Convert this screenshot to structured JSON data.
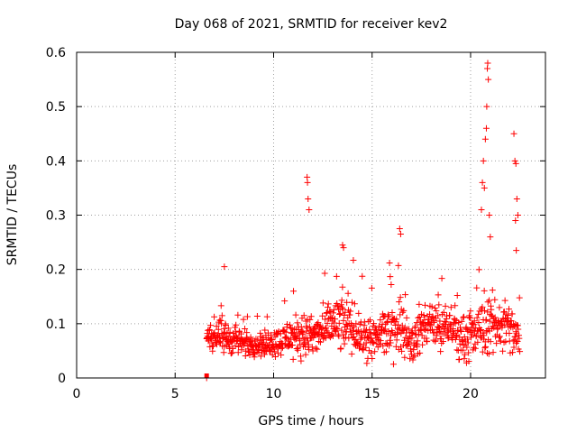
{
  "chart_data": {
    "type": "scatter",
    "title": "Day 068 of 2021, SRMTID for receiver kev2",
    "xlabel": "GPS time / hours",
    "ylabel": "SRMTID / TECUs",
    "xlim": [
      0,
      23.8
    ],
    "ylim": [
      0,
      0.6
    ],
    "x_ticks": [
      0,
      5,
      10,
      15,
      20
    ],
    "x_tick_labels": [
      "0",
      "5",
      "10",
      "15",
      "20"
    ],
    "y_ticks": [
      0,
      0.1,
      0.2,
      0.3,
      0.4,
      0.5,
      0.6
    ],
    "y_tick_labels": [
      "0",
      "0.1",
      "0.2",
      "0.3",
      "0.4",
      "0.5",
      "0.6"
    ],
    "grid": true,
    "marker": "+",
    "series": [
      {
        "name": "SRMTID",
        "color": "#ff0000",
        "outliers": {
          "x": [
            6.6,
            7.5,
            11.7,
            11.72,
            11.75,
            11.8,
            13.5,
            13.55,
            16.4,
            16.45,
            20.55,
            20.6,
            20.65,
            20.7,
            20.75,
            20.8,
            20.82,
            20.85,
            20.87,
            20.9,
            20.95,
            21.0,
            22.2,
            22.25,
            22.3,
            22.35,
            22.4,
            22.28,
            22.32
          ],
          "y": [
            0.0,
            0.205,
            0.37,
            0.36,
            0.33,
            0.31,
            0.245,
            0.24,
            0.275,
            0.265,
            0.31,
            0.36,
            0.4,
            0.35,
            0.44,
            0.46,
            0.5,
            0.57,
            0.58,
            0.55,
            0.3,
            0.26,
            0.45,
            0.4,
            0.395,
            0.33,
            0.3,
            0.29,
            0.235
          ]
        },
        "envelope": {
          "x": [
            6.6,
            7.0,
            7.5,
            8.0,
            8.5,
            9.0,
            9.5,
            10.0,
            10.5,
            11.0,
            11.5,
            12.0,
            12.5,
            13.0,
            13.5,
            14.0,
            14.5,
            15.0,
            15.5,
            16.0,
            16.5,
            17.0,
            17.5,
            18.0,
            18.5,
            19.0,
            19.5,
            20.0,
            20.5,
            21.0,
            21.5,
            22.0,
            22.5
          ],
          "median": [
            0.08,
            0.075,
            0.075,
            0.07,
            0.065,
            0.065,
            0.06,
            0.065,
            0.07,
            0.075,
            0.08,
            0.075,
            0.085,
            0.1,
            0.1,
            0.09,
            0.08,
            0.07,
            0.08,
            0.09,
            0.095,
            0.06,
            0.09,
            0.1,
            0.085,
            0.09,
            0.08,
            0.075,
            0.09,
            0.1,
            0.095,
            0.09,
            0.07
          ],
          "spread": [
            0.03,
            0.03,
            0.035,
            0.03,
            0.025,
            0.025,
            0.025,
            0.025,
            0.03,
            0.04,
            0.04,
            0.035,
            0.045,
            0.05,
            0.06,
            0.05,
            0.045,
            0.045,
            0.05,
            0.055,
            0.06,
            0.045,
            0.05,
            0.05,
            0.045,
            0.045,
            0.045,
            0.05,
            0.055,
            0.06,
            0.055,
            0.055,
            0.035
          ],
          "step_hours": 0.0167
        }
      }
    ]
  }
}
